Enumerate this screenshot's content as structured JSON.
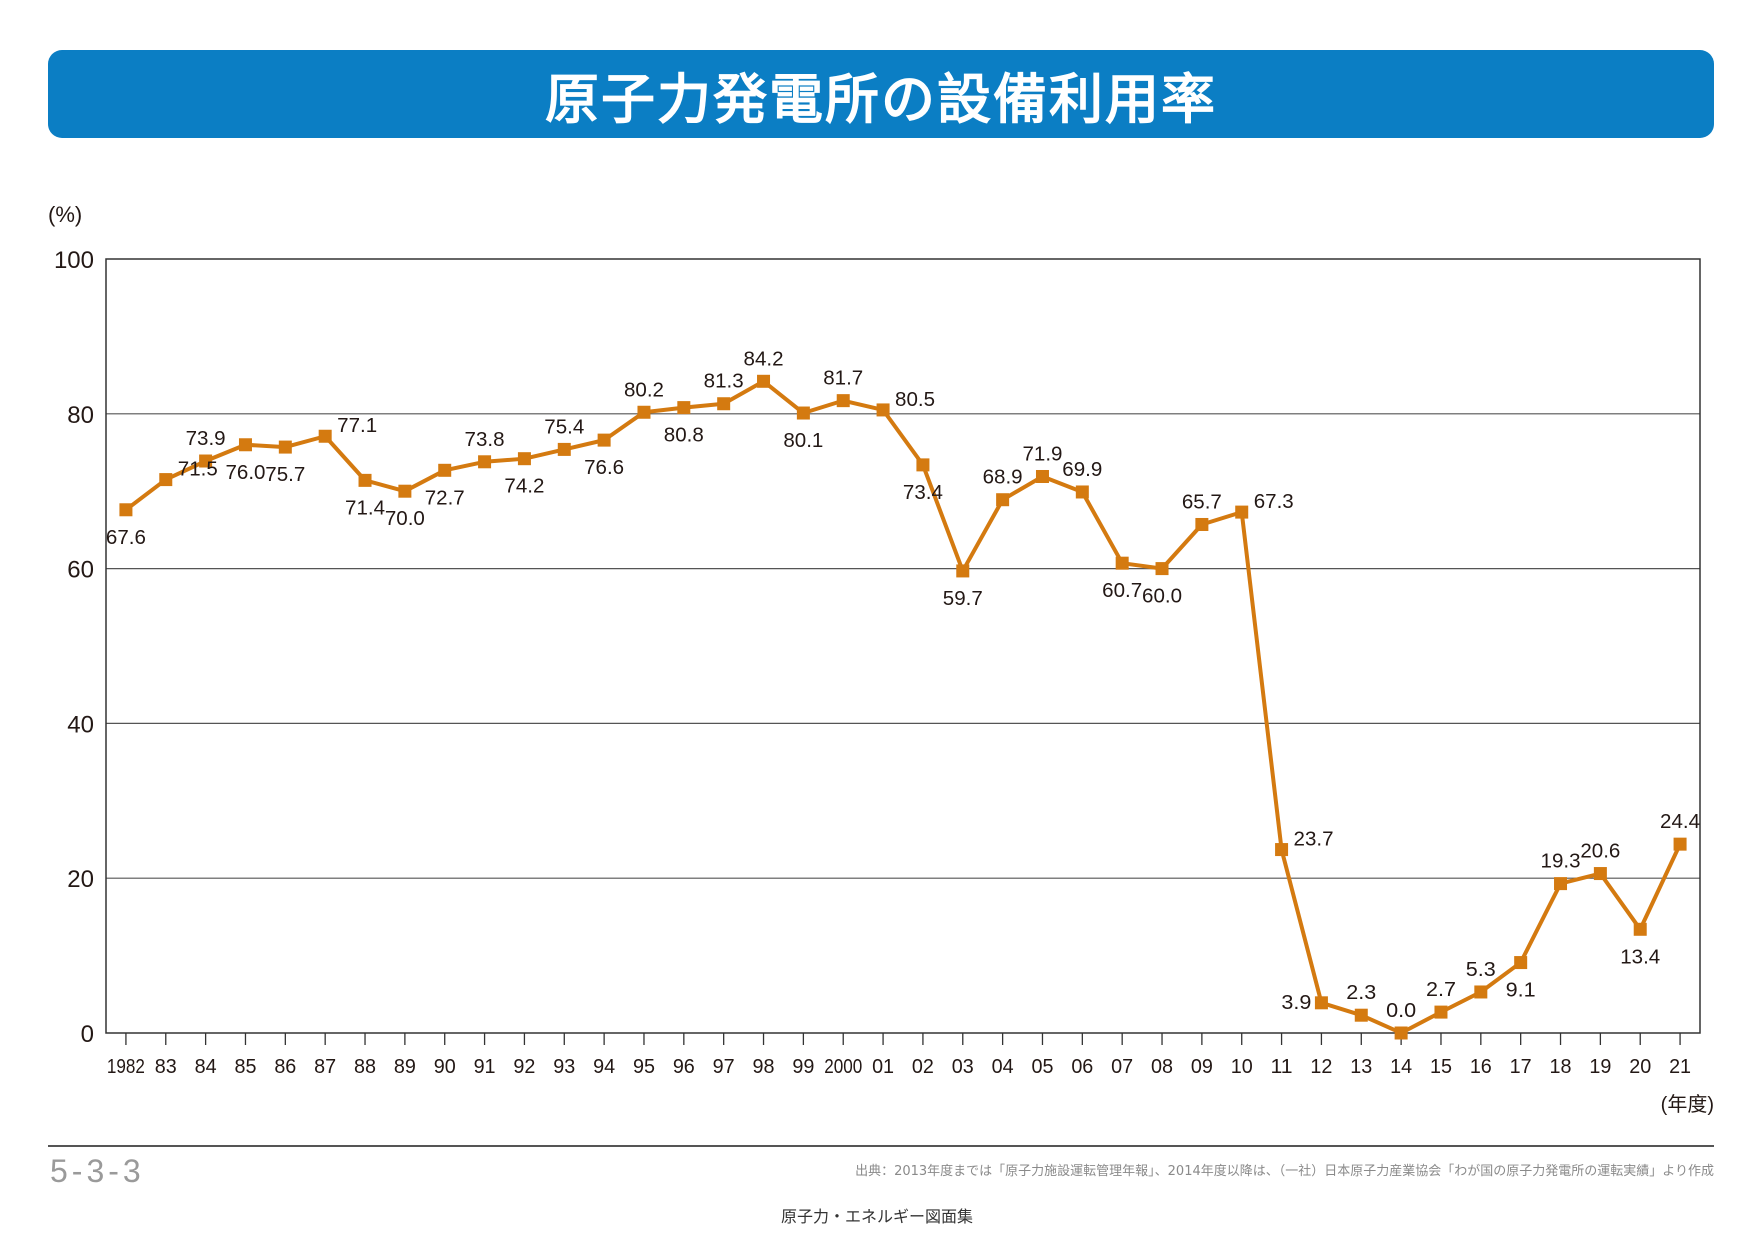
{
  "page": {
    "title": "原子力発電所の設備利用率",
    "page_code": "5-3-3",
    "source": "出典：2013年度までは「原子力施設運転管理年報」、2014年度以降は、（一社）日本原子力産業協会「わが国の原子力発電所の運転実績」より作成",
    "book_title": "原子力・エネルギー図面集"
  },
  "colors": {
    "accent": "#0b7ec4",
    "series": "#d47a10"
  },
  "chart_data": {
    "type": "line",
    "title": "原子力発電所の設備利用率",
    "ylabel": "(%)",
    "xlabel": "(年度)",
    "ylim": [
      0,
      100
    ],
    "yticks": [
      0,
      20,
      40,
      60,
      80,
      100
    ],
    "grid": true,
    "categories": [
      "1982",
      "83",
      "84",
      "85",
      "86",
      "87",
      "88",
      "89",
      "90",
      "91",
      "92",
      "93",
      "94",
      "95",
      "96",
      "97",
      "98",
      "99",
      "2000",
      "01",
      "02",
      "03",
      "04",
      "05",
      "06",
      "07",
      "08",
      "09",
      "10",
      "11",
      "12",
      "13",
      "14",
      "15",
      "16",
      "17",
      "18",
      "19",
      "20",
      "21"
    ],
    "series": [
      {
        "name": "設備利用率",
        "values": [
          67.6,
          71.5,
          73.9,
          76.0,
          75.7,
          77.1,
          71.4,
          70.0,
          72.7,
          73.8,
          74.2,
          75.4,
          76.6,
          80.2,
          80.8,
          81.3,
          84.2,
          80.1,
          81.7,
          80.5,
          73.4,
          59.7,
          68.9,
          71.9,
          69.9,
          60.7,
          60.0,
          65.7,
          67.3,
          23.7,
          3.9,
          2.3,
          0.0,
          2.7,
          5.3,
          9.1,
          19.3,
          20.6,
          13.4,
          24.4
        ],
        "labels": [
          "67.6",
          "71.5",
          "73.9",
          "76.0",
          "75.7",
          "77.1",
          "71.4",
          "70.0",
          "72.7",
          "73.8",
          "74.2",
          "75.4",
          "76.6",
          "80.2",
          "80.8",
          "81.3",
          "84.2",
          "80.1",
          "81.7",
          "80.5",
          "73.4",
          "59.7",
          "68.9",
          "71.9",
          "69.9",
          "60.7",
          "60.0",
          "65.7",
          "67.3",
          "23.7",
          "3.9",
          "2.3",
          "0.0",
          "2.7",
          "5.3",
          "9.1",
          "19.3",
          "20.6",
          "13.4",
          "24.4"
        ],
        "label_positions": [
          "below",
          "right",
          "above",
          "below",
          "below",
          "right",
          "below",
          "below",
          "below",
          "above",
          "below",
          "above",
          "below",
          "above",
          "below",
          "above",
          "above",
          "below",
          "above",
          "right",
          "below",
          "below",
          "above",
          "above",
          "above",
          "below",
          "below",
          "above",
          "right",
          "right",
          "left",
          "above",
          "above",
          "above",
          "above",
          "below",
          "above",
          "above",
          "below",
          "above"
        ]
      }
    ]
  }
}
